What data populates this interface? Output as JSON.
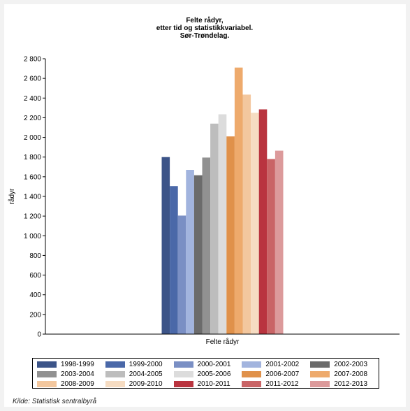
{
  "chart_data": {
    "type": "bar",
    "title": [
      "Felte rådyr,",
      "etter tid og statistikkvariabel.",
      "Sør-Trøndelag."
    ],
    "ylabel": "rådyr",
    "xlabel": "Felte rådyr",
    "categories": [
      "Felte rådyr"
    ],
    "ylim": [
      0,
      2800
    ],
    "yticks": [
      "0",
      "200",
      "400",
      "600",
      "800",
      "1 000",
      "1 200",
      "1 400",
      "1 600",
      "1 800",
      "2 000",
      "2 200",
      "2 400",
      "2 600",
      "2 800"
    ],
    "grid": false,
    "legend_placement": "bottom",
    "series": [
      {
        "name": "1998-1999",
        "values": [
          1800
        ],
        "color": "#3c5488"
      },
      {
        "name": "1999-2000",
        "values": [
          1505
        ],
        "color": "#4a68a8"
      },
      {
        "name": "2000-2001",
        "values": [
          1205
        ],
        "color": "#7a8fc4"
      },
      {
        "name": "2001-2002",
        "values": [
          1670
        ],
        "color": "#a2b4de"
      },
      {
        "name": "2002-2003",
        "values": [
          1615
        ],
        "color": "#6b6b6b"
      },
      {
        "name": "2003-2004",
        "values": [
          1795
        ],
        "color": "#919191"
      },
      {
        "name": "2004-2005",
        "values": [
          2140
        ],
        "color": "#bdbdbd"
      },
      {
        "name": "2005-2006",
        "values": [
          2235
        ],
        "color": "#dcdcdc"
      },
      {
        "name": "2006-2007",
        "values": [
          2010
        ],
        "color": "#e0914a"
      },
      {
        "name": "2007-2008",
        "values": [
          2710
        ],
        "color": "#eeaa6c"
      },
      {
        "name": "2008-2009",
        "values": [
          2435
        ],
        "color": "#f3c79e"
      },
      {
        "name": "2009-2010",
        "values": [
          2250
        ],
        "color": "#f6dcc2"
      },
      {
        "name": "2010-2011",
        "values": [
          2285
        ],
        "color": "#b9343f"
      },
      {
        "name": "2011-2012",
        "values": [
          1780
        ],
        "color": "#c96466"
      },
      {
        "name": "2012-2013",
        "values": [
          1865
        ],
        "color": "#dc9a9b"
      }
    ]
  },
  "source": "Kilde: Statistisk sentralbyrå"
}
